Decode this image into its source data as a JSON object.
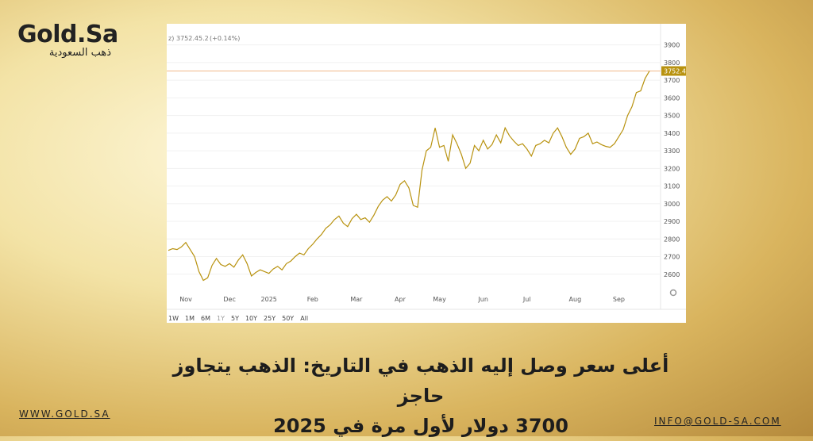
{
  "brand": {
    "name": "Gold.Sa",
    "tagline": "ذهب السعودية"
  },
  "headline": [
    "أعلى سعر وصل إليه الذهب في التاريخ: الذهب يتجاوز حاجز",
    "3700 دولار لأول مرة في 2025"
  ],
  "footer": {
    "website": "www.gold.sa",
    "email": "info@gold-sa.com"
  },
  "chart_data": {
    "type": "line",
    "header_prefix": "z)",
    "change": 5.2,
    "change_label": "(+0.14%)",
    "color": "#b8920f",
    "last_line_color": "#f2b98a",
    "categories": [
      null,
      null,
      null,
      null,
      "Nov",
      null,
      null,
      null,
      null,
      null,
      null,
      null,
      null,
      null,
      "Dec",
      null,
      null,
      null,
      null,
      null,
      null,
      null,
      null,
      "2025",
      null,
      null,
      null,
      null,
      null,
      null,
      null,
      null,
      null,
      "Feb",
      null,
      null,
      null,
      null,
      null,
      null,
      null,
      null,
      null,
      "Mar",
      null,
      null,
      null,
      null,
      null,
      null,
      null,
      null,
      null,
      "Apr",
      null,
      null,
      null,
      null,
      null,
      null,
      null,
      null,
      "May",
      null,
      null,
      null,
      null,
      null,
      null,
      null,
      null,
      null,
      "Jun",
      null,
      null,
      null,
      null,
      null,
      null,
      null,
      null,
      null,
      "Jul",
      null,
      null,
      null,
      null,
      null,
      null,
      null,
      null,
      null,
      null,
      "Aug",
      null,
      null,
      null,
      null,
      null,
      null,
      null,
      null,
      null,
      "Sep",
      null,
      null,
      null,
      null,
      null,
      null,
      null
    ],
    "values": [
      2735,
      2745,
      2740,
      2755,
      2780,
      2740,
      2700,
      2615,
      2565,
      2580,
      2650,
      2690,
      2655,
      2645,
      2660,
      2640,
      2680,
      2710,
      2660,
      2590,
      2610,
      2625,
      2615,
      2605,
      2630,
      2645,
      2625,
      2660,
      2675,
      2700,
      2720,
      2710,
      2745,
      2770,
      2800,
      2825,
      2860,
      2880,
      2910,
      2930,
      2890,
      2870,
      2915,
      2940,
      2910,
      2920,
      2895,
      2935,
      2985,
      3020,
      3040,
      3015,
      3050,
      3110,
      3130,
      3090,
      2990,
      2980,
      3190,
      3300,
      3320,
      3430,
      3320,
      3330,
      3240,
      3390,
      3340,
      3280,
      3200,
      3230,
      3330,
      3300,
      3360,
      3310,
      3335,
      3390,
      3345,
      3430,
      3385,
      3355,
      3330,
      3340,
      3310,
      3270,
      3330,
      3340,
      3360,
      3345,
      3400,
      3430,
      3380,
      3320,
      3280,
      3310,
      3370,
      3380,
      3400,
      3340,
      3350,
      3335,
      3325,
      3320,
      3340,
      3380,
      3420,
      3500,
      3550,
      3630,
      3640,
      3710,
      3752.4
    ],
    "ylim": [
      2500,
      4020
    ],
    "yticks": [
      2600,
      2700,
      2800,
      2900,
      3000,
      3100,
      3200,
      3300,
      3400,
      3500,
      3600,
      3700,
      3800,
      3900
    ],
    "grid": true,
    "ranges": [
      "1W",
      "1M",
      "6M",
      "1Y",
      "5Y",
      "10Y",
      "25Y",
      "50Y",
      "All"
    ]
  }
}
